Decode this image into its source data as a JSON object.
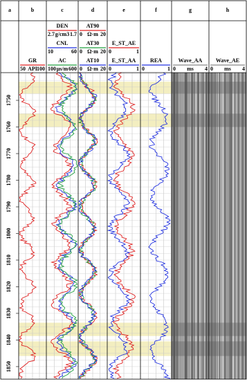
{
  "columns": [
    {
      "letter": "a",
      "curves": []
    },
    {
      "letter": "b",
      "curves": [
        {
          "name": "GR",
          "color": "#e02020",
          "left": 50,
          "unit": "API",
          "right": 100
        }
      ]
    },
    {
      "letter": "c",
      "curves": [
        {
          "name": "DEN",
          "color": "#e02020",
          "left": 2.7,
          "unit": "g/cm3",
          "right": 1.7
        },
        {
          "name": "CNL",
          "color": "#2030e0",
          "left": 10,
          "right": 60
        },
        {
          "name": "AC",
          "color": "#20a040",
          "left": 100,
          "unit": "μs/m",
          "right": 600
        }
      ]
    },
    {
      "letter": "d",
      "curves": [
        {
          "name": "AT90",
          "color": "#e02020",
          "left": 0,
          "unit": "Ω·m",
          "right": 20
        },
        {
          "name": "AT30",
          "color": "#20a040",
          "left": 0,
          "unit": "Ω·m",
          "right": 20
        },
        {
          "name": "AT10",
          "color": "#2030e0",
          "left": 0,
          "unit": "Ω·m",
          "right": 20
        }
      ]
    },
    {
      "letter": "e",
      "curves": [
        {
          "name": "E_ST_AE",
          "color": "#e02020",
          "left": 0,
          "right": 1
        },
        {
          "name": "E_ST_AA",
          "color": "#2030e0",
          "left": 0,
          "right": 1
        }
      ]
    },
    {
      "letter": "f",
      "curves": [
        {
          "name": "REA",
          "color": "#2030e0",
          "left": 0,
          "right": 1
        }
      ]
    },
    {
      "letter": "g",
      "wave": true,
      "curves": [
        {
          "name": "Wave_AA",
          "color": "#888888",
          "left": 0,
          "unit": "ms",
          "right": 4
        }
      ]
    },
    {
      "letter": "h",
      "wave": true,
      "curves": [
        {
          "name": "Wave_AE",
          "color": "#888888",
          "left": 0,
          "unit": "ms",
          "right": 4
        }
      ]
    }
  ],
  "depth": {
    "lim": [
      1739.6,
      1854.7
    ],
    "ticks": [
      1750,
      1760,
      1770,
      1780,
      1790,
      1800,
      1810,
      1820,
      1830,
      1840,
      1850
    ]
  },
  "zones": [
    [
      1743,
      1747.5
    ],
    [
      1755,
      1760
    ],
    [
      1833.5,
      1838.5
    ],
    [
      1840.5,
      1846
    ]
  ]
}
